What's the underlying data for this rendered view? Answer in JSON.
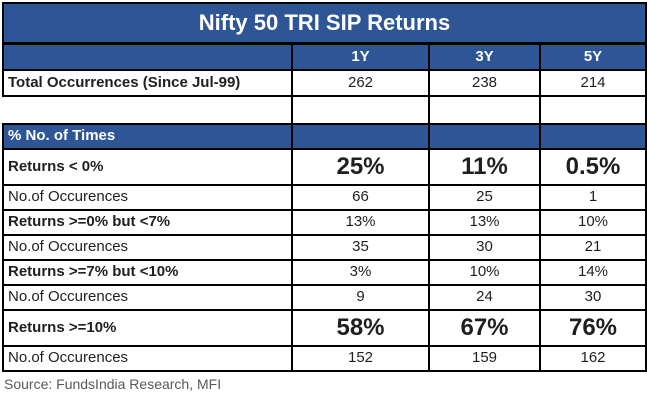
{
  "title": "Nifty 50 TRI SIP Returns",
  "columns": {
    "y1": "1Y",
    "y3": "3Y",
    "y5": "5Y"
  },
  "rows": {
    "total": {
      "label": "Total Occurrences (Since Jul-99)",
      "y1": "262",
      "y3": "238",
      "y5": "214"
    },
    "section": {
      "label": "% No. of Times"
    },
    "ret_lt0": {
      "label": "Returns < 0%",
      "y1": "25%",
      "y3": "11%",
      "y5": "0.5%"
    },
    "occ_lt0": {
      "label": "No.of Occurences",
      "y1": "66",
      "y3": "25",
      "y5": "1"
    },
    "ret_0to7": {
      "label": "Returns >=0% but <7%",
      "y1": "13%",
      "y3": "13%",
      "y5": "10%"
    },
    "occ_0to7": {
      "label": "No.of Occurences",
      "y1": "35",
      "y3": "30",
      "y5": "21"
    },
    "ret_7to10": {
      "label": "Returns >=7% but <10%",
      "y1": "3%",
      "y3": "10%",
      "y5": "14%"
    },
    "occ_7to10": {
      "label": "No.of Occurences",
      "y1": "9",
      "y3": "24",
      "y5": "30"
    },
    "ret_gte10": {
      "label": "Returns >=10%",
      "y1": "58%",
      "y3": "67%",
      "y5": "76%"
    },
    "occ_gte10": {
      "label": "No.of Occurences",
      "y1": "152",
      "y3": "159",
      "y5": "162"
    }
  },
  "source": "Source: FundsIndia Research, MFI",
  "colors": {
    "header_blue": "#2e5596",
    "border_black": "#000000",
    "text_dark": "#1f1f1f",
    "source_gray": "#595959"
  },
  "chart_data": {
    "type": "table",
    "title": "Nifty 50 TRI SIP Returns",
    "columns": [
      "",
      "1Y",
      "3Y",
      "5Y"
    ],
    "rows": [
      [
        "Total Occurrences (Since Jul-99)",
        262,
        238,
        214
      ],
      [
        "% No. of Times",
        null,
        null,
        null
      ],
      [
        "Returns < 0%",
        "25%",
        "11%",
        "0.5%"
      ],
      [
        "No.of Occurences",
        66,
        25,
        1
      ],
      [
        "Returns >=0% but <7%",
        "13%",
        "13%",
        "10%"
      ],
      [
        "No.of Occurences",
        35,
        30,
        21
      ],
      [
        "Returns >=7% but <10%",
        "3%",
        "10%",
        "14%"
      ],
      [
        "No.of Occurences",
        9,
        24,
        30
      ],
      [
        "Returns >=10%",
        "58%",
        "67%",
        "76%"
      ],
      [
        "No.of Occurences",
        152,
        159,
        162
      ]
    ],
    "source": "Source: FundsIndia Research, MFI"
  }
}
